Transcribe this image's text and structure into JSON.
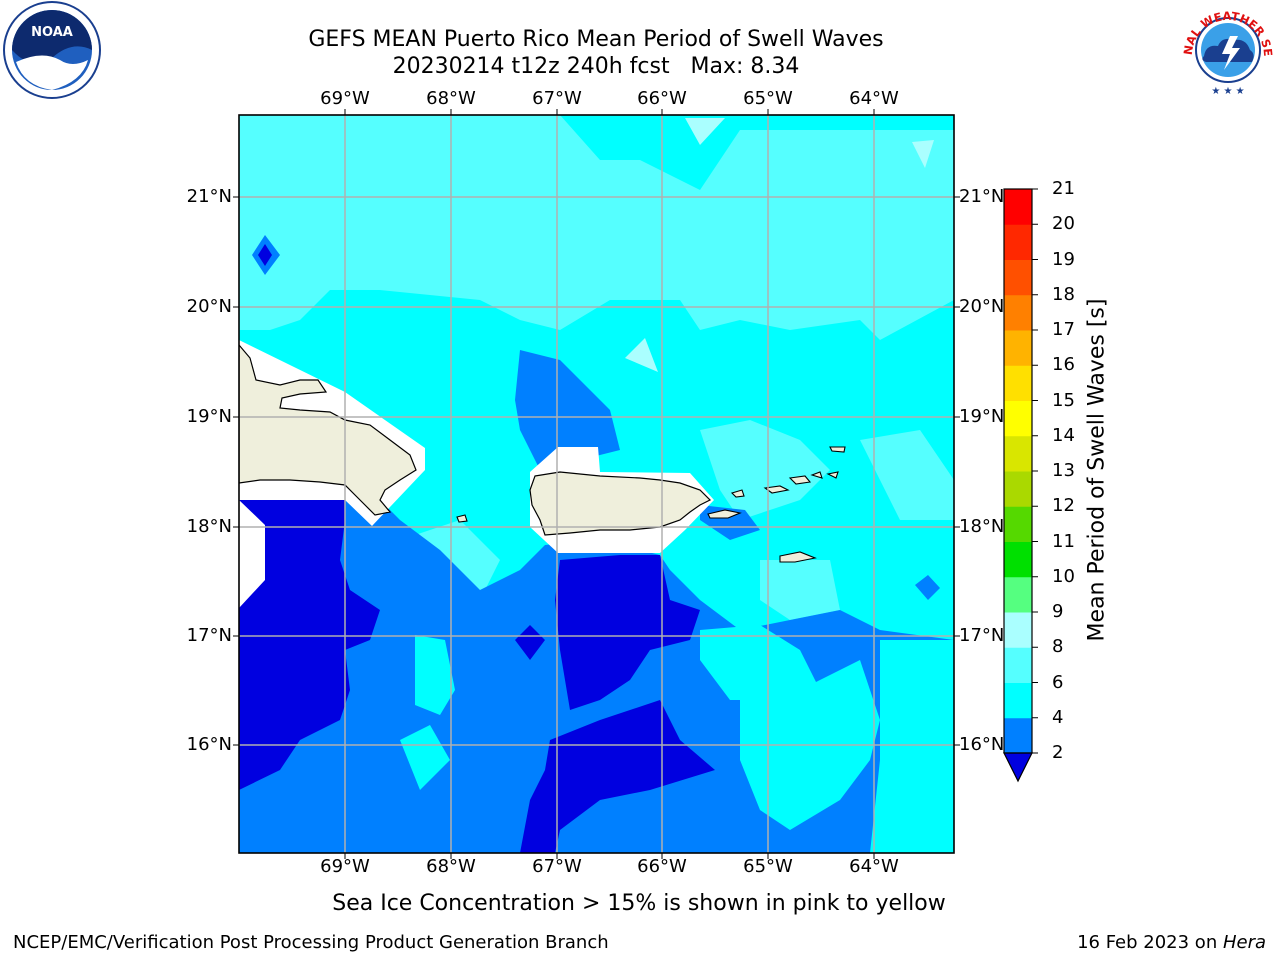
{
  "title": {
    "line1": "GEFS MEAN Puerto Rico Mean Period of Swell Waves",
    "line2": "20230214 t12z 240h fcst   Max: 8.34"
  },
  "note": "Sea Ice Concentration > 15% is shown in pink to yellow",
  "footer": {
    "left": "NCEP/EMC/Verification Post Processing Product Generation Branch",
    "right_date": "16 Feb 2023 on ",
    "right_host": "Hera"
  },
  "map": {
    "lon_labels": [
      "69°W",
      "68°W",
      "67°W",
      "66°W",
      "65°W",
      "64°W"
    ],
    "lat_labels": [
      "21°N",
      "20°N",
      "19°N",
      "18°N",
      "17°N",
      "16°N"
    ],
    "land_color": "#efefdc",
    "grid_color": "#b0b0b0"
  },
  "colorbar": {
    "title": "Mean Period of Swell Waves [s]",
    "levels": [
      2,
      4,
      6,
      8,
      9,
      10,
      11,
      12,
      13,
      14,
      15,
      16,
      17,
      18,
      19,
      20,
      21
    ],
    "colors": [
      "#0000e0",
      "#0080ff",
      "#00ffff",
      "#55ffff",
      "#aaffff",
      "#55ff80",
      "#00e000",
      "#55d900",
      "#aad900",
      "#d9e600",
      "#ffff00",
      "#ffe000",
      "#ffb300",
      "#ff8000",
      "#ff5000",
      "#ff2800",
      "#ff0000"
    ],
    "extend": "min"
  },
  "logos": {
    "left": "NOAA",
    "right": "NATIONAL WEATHER SERVICE"
  }
}
